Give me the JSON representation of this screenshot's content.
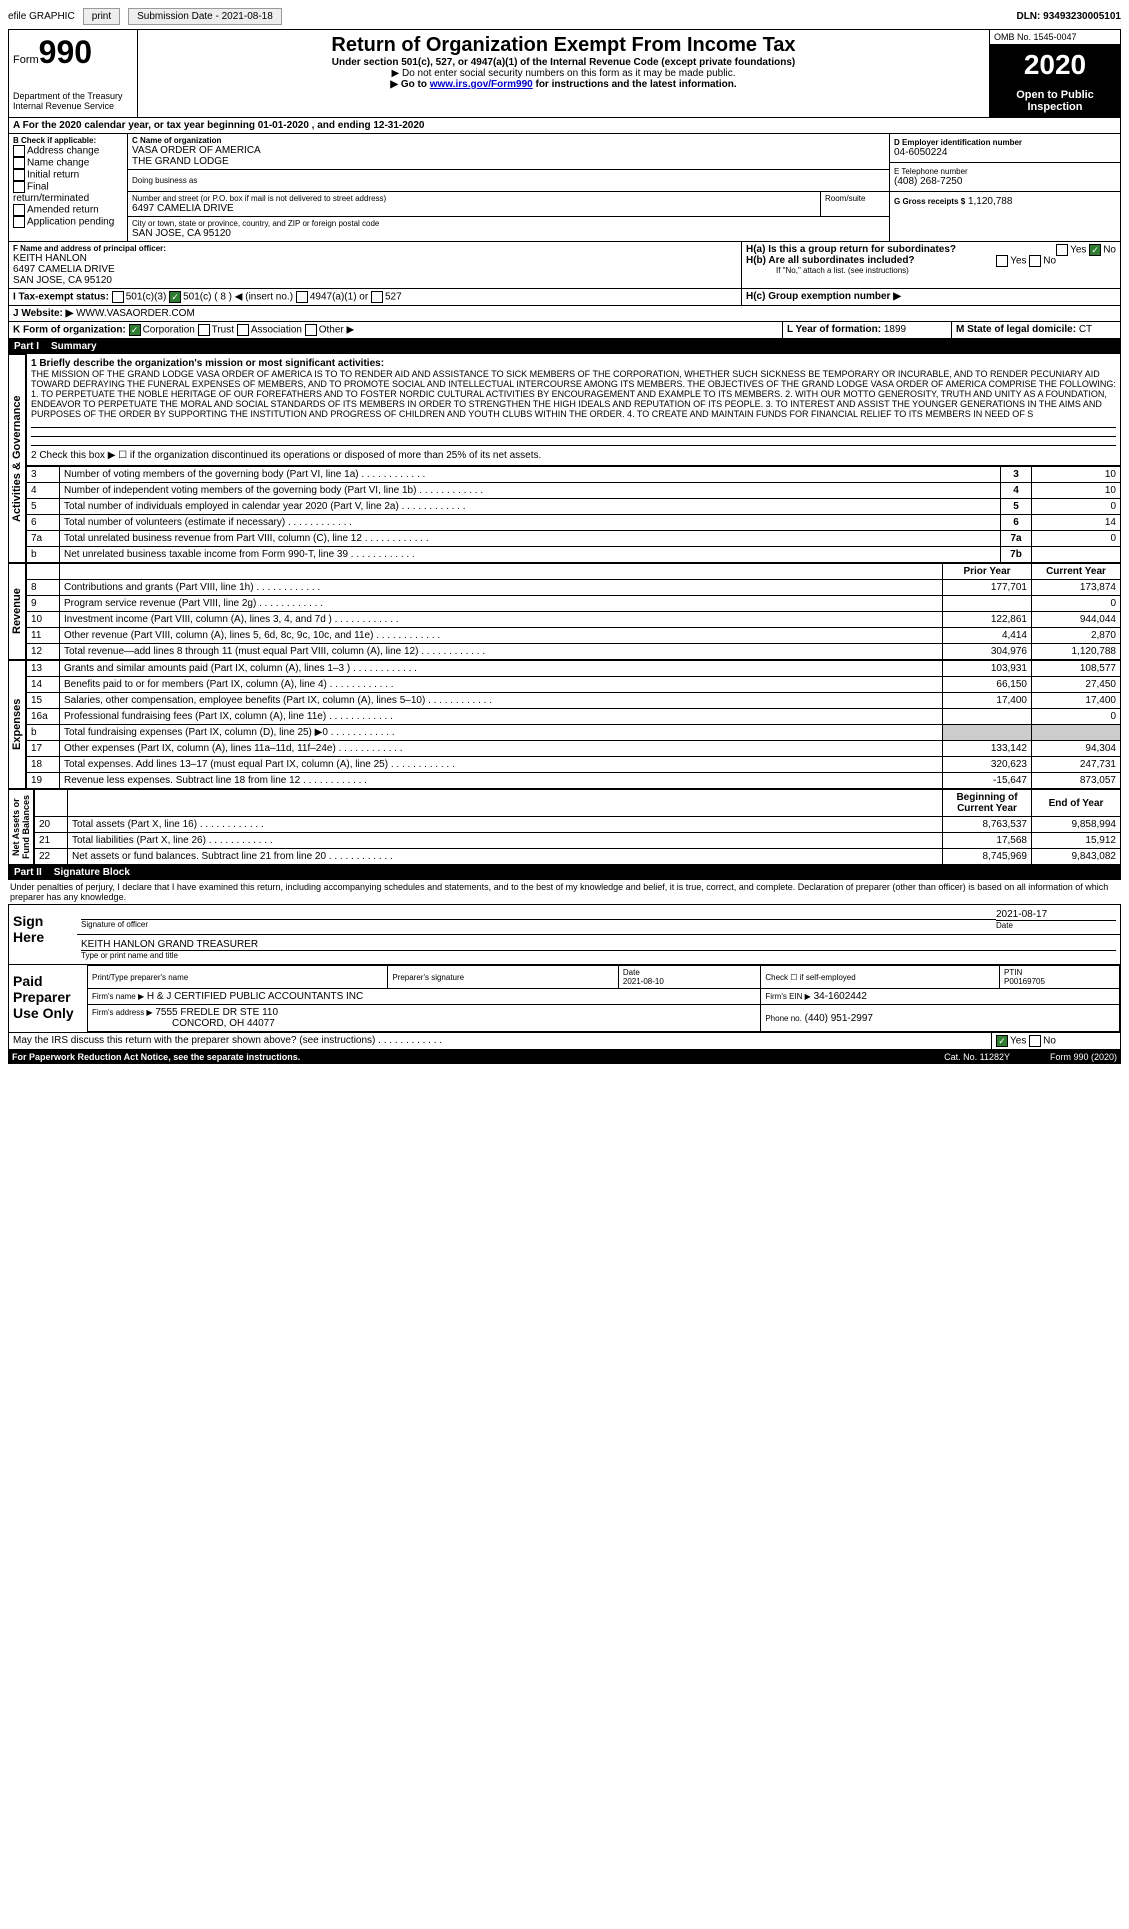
{
  "top": {
    "efile": "efile GRAPHIC",
    "print": "print",
    "submission_label": "Submission Date - 2021-08-18",
    "dln": "DLN: 93493230005101"
  },
  "header": {
    "form_label": "Form",
    "form_num": "990",
    "title": "Return of Organization Exempt From Income Tax",
    "sub1": "Under section 501(c), 527, or 4947(a)(1) of the Internal Revenue Code (except private foundations)",
    "sub2": "▶ Do not enter social security numbers on this form as it may be made public.",
    "sub3_pre": "▶ Go to ",
    "sub3_link": "www.irs.gov/Form990",
    "sub3_post": " for instructions and the latest information.",
    "dept": "Department of the Treasury\nInternal Revenue Service",
    "omb": "OMB No. 1545-0047",
    "year": "2020",
    "open": "Open to Public\nInspection"
  },
  "a_line": "For the 2020 calendar year, or tax year beginning 01-01-2020   , and ending 12-31-2020",
  "b": {
    "label": "B Check if applicable:",
    "items": [
      "Address change",
      "Name change",
      "Initial return",
      "Final return/terminated",
      "Amended return",
      "Application pending"
    ]
  },
  "c": {
    "name_label": "C Name of organization",
    "name1": "VASA ORDER OF AMERICA",
    "name2": "THE GRAND LODGE",
    "dba": "Doing business as",
    "addr_label": "Number and street (or P.O. box if mail is not delivered to street address)",
    "suite": "Room/suite",
    "addr": "6497 CAMELIA DRIVE",
    "city_label": "City or town, state or province, country, and ZIP or foreign postal code",
    "city": "SAN JOSE, CA  95120"
  },
  "d": {
    "label": "D Employer identification number",
    "value": "04-6050224"
  },
  "e": {
    "label": "E Telephone number",
    "value": "(408) 268-7250"
  },
  "g": {
    "label": "G Gross receipts $",
    "value": "1,120,788"
  },
  "f": {
    "label": "F  Name and address of principal officer:",
    "name": "KEITH HANLON",
    "addr": "6497 CAMELIA DRIVE",
    "city": "SAN JOSE, CA  95120"
  },
  "h": {
    "a": "H(a)  Is this a group return for subordinates?",
    "b": "H(b)  Are all subordinates included?",
    "b_note": "If \"No,\" attach a list. (see instructions)",
    "c": "H(c)  Group exemption number ▶",
    "yes": "Yes",
    "no": "No"
  },
  "i": {
    "label": "I  Tax-exempt status:",
    "c3": "501(c)(3)",
    "c": "501(c) ( 8 ) ◀ (insert no.)",
    "a1": "4947(a)(1) or",
    "527": "527"
  },
  "j": {
    "label": "J  Website: ▶",
    "value": "WWW.VASAORDER.COM"
  },
  "k": {
    "label": "K Form of organization:",
    "corp": "Corporation",
    "trust": "Trust",
    "assoc": "Association",
    "other": "Other ▶"
  },
  "l": {
    "label": "L Year of formation:",
    "value": "1899"
  },
  "m": {
    "label": "M State of legal domicile:",
    "value": "CT"
  },
  "part1": {
    "num": "Part I",
    "title": "Summary"
  },
  "mission_label": "1  Briefly describe the organization's mission or most significant activities:",
  "mission": "THE MISSION OF THE GRAND LODGE VASA ORDER OF AMERICA IS TO TO RENDER AID AND ASSISTANCE TO SICK MEMBERS OF THE CORPORATION, WHETHER SUCH SICKNESS BE TEMPORARY OR INCURABLE, AND TO RENDER PECUNIARY AID TOWARD DEFRAYING THE FUNERAL EXPENSES OF MEMBERS, AND TO PROMOTE SOCIAL AND INTELLECTUAL INTERCOURSE AMONG ITS MEMBERS. THE OBJECTIVES OF THE GRAND LODGE VASA ORDER OF AMERICA COMPRISE THE FOLLOWING: 1. TO PERPETUATE THE NOBLE HERITAGE OF OUR FOREFATHERS AND TO FOSTER NORDIC CULTURAL ACTIVITIES BY ENCOURAGEMENT AND EXAMPLE TO ITS MEMBERS. 2. WITH OUR MOTTO GENEROSITY, TRUTH AND UNITY AS A FOUNDATION, ENDEAVOR TO PERPETUATE THE MORAL AND SOCIAL STANDARDS OF ITS MEMBERS IN ORDER TO STRENGTHEN THE HIGH IDEALS AND REPUTATION OF ITS PEOPLE. 3. TO INTEREST AND ASSIST THE YOUNGER GENERATIONS IN THE AIMS AND PURPOSES OF THE ORDER BY SUPPORTING THE INSTITUTION AND PROGRESS OF CHILDREN AND YOUTH CLUBS WITHIN THE ORDER. 4. TO CREATE AND MAINTAIN FUNDS FOR FINANCIAL RELIEF TO ITS MEMBERS IN NEED OF S",
  "line2": "2  Check this box ▶ ☐ if the organization discontinued its operations or disposed of more than 25% of its net assets.",
  "gov_lines": [
    {
      "n": "3",
      "t": "Number of voting members of the governing body (Part VI, line 1a)",
      "b": "3",
      "v": "10"
    },
    {
      "n": "4",
      "t": "Number of independent voting members of the governing body (Part VI, line 1b)",
      "b": "4",
      "v": "10"
    },
    {
      "n": "5",
      "t": "Total number of individuals employed in calendar year 2020 (Part V, line 2a)",
      "b": "5",
      "v": "0"
    },
    {
      "n": "6",
      "t": "Total number of volunteers (estimate if necessary)",
      "b": "6",
      "v": "14"
    },
    {
      "n": "7a",
      "t": "Total unrelated business revenue from Part VIII, column (C), line 12",
      "b": "7a",
      "v": "0"
    },
    {
      "n": "b",
      "t": "Net unrelated business taxable income from Form 990-T, line 39",
      "b": "7b",
      "v": ""
    }
  ],
  "col_prior": "Prior Year",
  "col_current": "Current Year",
  "revenue": [
    {
      "n": "8",
      "t": "Contributions and grants (Part VIII, line 1h)",
      "p": "177,701",
      "c": "173,874"
    },
    {
      "n": "9",
      "t": "Program service revenue (Part VIII, line 2g)",
      "p": "",
      "c": "0"
    },
    {
      "n": "10",
      "t": "Investment income (Part VIII, column (A), lines 3, 4, and 7d )",
      "p": "122,861",
      "c": "944,044"
    },
    {
      "n": "11",
      "t": "Other revenue (Part VIII, column (A), lines 5, 6d, 8c, 9c, 10c, and 11e)",
      "p": "4,414",
      "c": "2,870"
    },
    {
      "n": "12",
      "t": "Total revenue—add lines 8 through 11 (must equal Part VIII, column (A), line 12)",
      "p": "304,976",
      "c": "1,120,788"
    }
  ],
  "expenses": [
    {
      "n": "13",
      "t": "Grants and similar amounts paid (Part IX, column (A), lines 1–3 )",
      "p": "103,931",
      "c": "108,577"
    },
    {
      "n": "14",
      "t": "Benefits paid to or for members (Part IX, column (A), line 4)",
      "p": "66,150",
      "c": "27,450"
    },
    {
      "n": "15",
      "t": "Salaries, other compensation, employee benefits (Part IX, column (A), lines 5–10)",
      "p": "17,400",
      "c": "17,400"
    },
    {
      "n": "16a",
      "t": "Professional fundraising fees (Part IX, column (A), line 11e)",
      "p": "",
      "c": "0"
    },
    {
      "n": "b",
      "t": "Total fundraising expenses (Part IX, column (D), line 25) ▶0",
      "p": "GRAY",
      "c": "GRAY"
    },
    {
      "n": "17",
      "t": "Other expenses (Part IX, column (A), lines 11a–11d, 11f–24e)",
      "p": "133,142",
      "c": "94,304"
    },
    {
      "n": "18",
      "t": "Total expenses. Add lines 13–17 (must equal Part IX, column (A), line 25)",
      "p": "320,623",
      "c": "247,731"
    },
    {
      "n": "19",
      "t": "Revenue less expenses. Subtract line 18 from line 12",
      "p": "-15,647",
      "c": "873,057"
    }
  ],
  "col_begin": "Beginning of Current Year",
  "col_end": "End of Year",
  "netassets": [
    {
      "n": "20",
      "t": "Total assets (Part X, line 16)",
      "p": "8,763,537",
      "c": "9,858,994"
    },
    {
      "n": "21",
      "t": "Total liabilities (Part X, line 26)",
      "p": "17,568",
      "c": "15,912"
    },
    {
      "n": "22",
      "t": "Net assets or fund balances. Subtract line 21 from line 20",
      "p": "8,745,969",
      "c": "9,843,082"
    }
  ],
  "part2": {
    "num": "Part II",
    "title": "Signature Block"
  },
  "penalties": "Under penalties of perjury, I declare that I have examined this return, including accompanying schedules and statements, and to the best of my knowledge and belief, it is true, correct, and complete. Declaration of preparer (other than officer) is based on all information of which preparer has any knowledge.",
  "sign": {
    "here": "Sign Here",
    "sig_officer": "Signature of officer",
    "date": "Date",
    "date_val": "2021-08-17",
    "name": "KEITH HANLON  GRAND TREASURER",
    "name_label": "Type or print name and title"
  },
  "paid": {
    "label": "Paid Preparer Use Only",
    "print_name": "Print/Type preparer's name",
    "prep_sig": "Preparer's signature",
    "date": "Date",
    "date_val": "2021-08-10",
    "check": "Check ☐ if self-employed",
    "ptin": "PTIN",
    "ptin_val": "P00169705",
    "firm_name": "Firm's name    ▶",
    "firm_name_val": "H & J CERTIFIED PUBLIC ACCOUNTANTS INC",
    "firm_ein": "Firm's EIN ▶",
    "firm_ein_val": "34-1602442",
    "firm_addr": "Firm's address ▶",
    "firm_addr_val": "7555 FREDLE DR STE 110",
    "firm_city": "CONCORD, OH  44077",
    "phone": "Phone no.",
    "phone_val": "(440) 951-2997"
  },
  "footer": {
    "discuss": "May the IRS discuss this return with the preparer shown above? (see instructions)",
    "paperwork": "For Paperwork Reduction Act Notice, see the separate instructions.",
    "cat": "Cat. No. 11282Y",
    "form": "Form 990 (2020)"
  },
  "vert": {
    "act": "Activities & Governance",
    "rev": "Revenue",
    "exp": "Expenses",
    "net": "Net Assets or\nFund Balances"
  }
}
